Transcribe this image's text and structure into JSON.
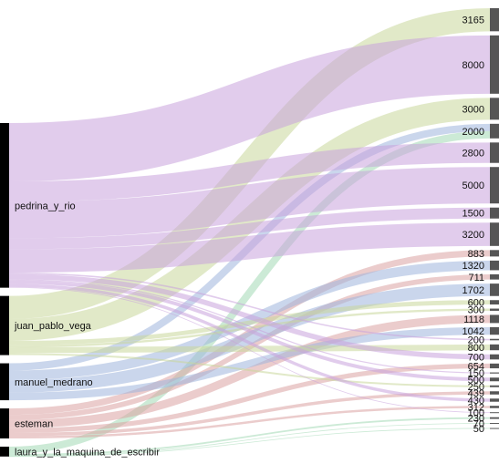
{
  "chart_data": {
    "type": "sankey",
    "sources": [
      {
        "name": "pedrina_y_rio",
        "color": "#c9a3dc"
      },
      {
        "name": "juan_pablo_vega",
        "color": "#c9d79a"
      },
      {
        "name": "manuel_medrano",
        "color": "#9fb4dd"
      },
      {
        "name": "esteman",
        "color": "#dba3a3"
      },
      {
        "name": "laura_y_la_maquina_de_escribir",
        "color": "#a3d9b4"
      }
    ],
    "targets": [
      "3165",
      "8000",
      "3000",
      "2000",
      "2800",
      "5000",
      "1500",
      "3200",
      "883",
      "1320",
      "711",
      "1702",
      "600",
      "300",
      "1118",
      "1042",
      "200",
      "800",
      "700",
      "654",
      "150",
      "500",
      "250",
      "439",
      "430",
      "312",
      "100",
      "230",
      "70",
      "50"
    ],
    "links": [
      {
        "source": "juan_pablo_vega",
        "target": "3165",
        "value": 3165
      },
      {
        "source": "pedrina_y_rio",
        "target": "8000",
        "value": 8000
      },
      {
        "source": "juan_pablo_vega",
        "target": "3000",
        "value": 3000
      },
      {
        "source": "manuel_medrano",
        "target": "2000",
        "value": 1000
      },
      {
        "source": "laura_y_la_maquina_de_escribir",
        "target": "2000",
        "value": 1000
      },
      {
        "source": "pedrina_y_rio",
        "target": "2800",
        "value": 2800
      },
      {
        "source": "pedrina_y_rio",
        "target": "5000",
        "value": 5000
      },
      {
        "source": "pedrina_y_rio",
        "target": "1500",
        "value": 1500
      },
      {
        "source": "pedrina_y_rio",
        "target": "3200",
        "value": 3200
      },
      {
        "source": "esteman",
        "target": "883",
        "value": 883
      },
      {
        "source": "manuel_medrano",
        "target": "1320",
        "value": 1320
      },
      {
        "source": "esteman",
        "target": "711",
        "value": 711
      },
      {
        "source": "manuel_medrano",
        "target": "1702",
        "value": 1702
      },
      {
        "source": "juan_pablo_vega",
        "target": "600",
        "value": 600
      },
      {
        "source": "juan_pablo_vega",
        "target": "300",
        "value": 300
      },
      {
        "source": "esteman",
        "target": "1118",
        "value": 1118
      },
      {
        "source": "manuel_medrano",
        "target": "1042",
        "value": 1042
      },
      {
        "source": "pedrina_y_rio",
        "target": "200",
        "value": 200
      },
      {
        "source": "juan_pablo_vega",
        "target": "800",
        "value": 800
      },
      {
        "source": "pedrina_y_rio",
        "target": "700",
        "value": 700
      },
      {
        "source": "esteman",
        "target": "654",
        "value": 654
      },
      {
        "source": "pedrina_y_rio",
        "target": "150",
        "value": 150
      },
      {
        "source": "pedrina_y_rio",
        "target": "500",
        "value": 500
      },
      {
        "source": "juan_pablo_vega",
        "target": "250",
        "value": 250
      },
      {
        "source": "esteman",
        "target": "439",
        "value": 439
      },
      {
        "source": "pedrina_y_rio",
        "target": "430",
        "value": 430
      },
      {
        "source": "esteman",
        "target": "312",
        "value": 312
      },
      {
        "source": "pedrina_y_rio",
        "target": "100",
        "value": 100
      },
      {
        "source": "laura_y_la_maquina_de_escribir",
        "target": "230",
        "value": 230
      },
      {
        "source": "laura_y_la_maquina_de_escribir",
        "target": "70",
        "value": 70
      },
      {
        "source": "laura_y_la_maquina_de_escribir",
        "target": "50",
        "value": 50
      }
    ]
  }
}
